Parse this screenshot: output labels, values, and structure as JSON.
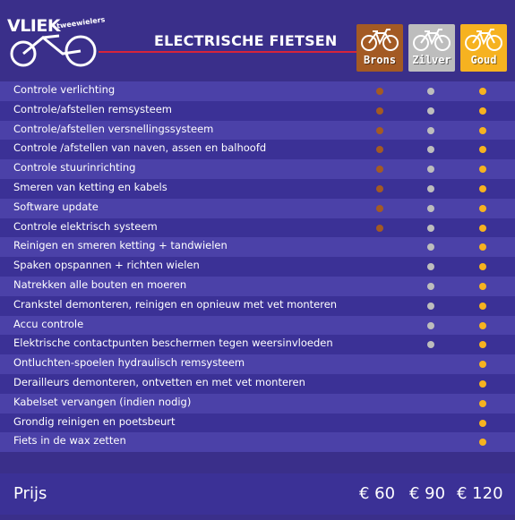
{
  "logo": {
    "word": "VLIEK",
    "sub": "tweewielers"
  },
  "title": "ELECTRISCHE FIETSEN",
  "packages": [
    {
      "name": "Brons",
      "color": "#a35a24"
    },
    {
      "name": "Zilver",
      "color": "#bdbdbd"
    },
    {
      "name": "Goud",
      "color": "#f6b220"
    }
  ],
  "services": [
    {
      "label": "Controle verlichting",
      "brons": true,
      "zilver": true,
      "goud": true
    },
    {
      "label": "Controle/afstellen remsysteem",
      "brons": true,
      "zilver": true,
      "goud": true
    },
    {
      "label": "Controle/afstellen versnellingssysteem",
      "brons": true,
      "zilver": true,
      "goud": true
    },
    {
      "label": "Controle /afstellen van naven, assen en balhoofd",
      "brons": true,
      "zilver": true,
      "goud": true
    },
    {
      "label": "Controle stuurinrichting",
      "brons": true,
      "zilver": true,
      "goud": true
    },
    {
      "label": "Smeren van ketting en kabels",
      "brons": true,
      "zilver": true,
      "goud": true
    },
    {
      "label": "Software update",
      "brons": true,
      "zilver": true,
      "goud": true
    },
    {
      "label": "Controle elektrisch systeem",
      "brons": true,
      "zilver": true,
      "goud": true
    },
    {
      "label": "Reinigen en smeren ketting + tandwielen",
      "brons": false,
      "zilver": true,
      "goud": true
    },
    {
      "label": "Spaken opspannen + richten wielen",
      "brons": false,
      "zilver": true,
      "goud": true
    },
    {
      "label": "Natrekken alle bouten en moeren",
      "brons": false,
      "zilver": true,
      "goud": true
    },
    {
      "label": "Crankstel demonteren, reinigen en opnieuw met vet monteren",
      "brons": false,
      "zilver": true,
      "goud": true
    },
    {
      "label": "Accu controle",
      "brons": false,
      "zilver": true,
      "goud": true
    },
    {
      "label": "Elektrische contactpunten beschermen tegen weersinvloeden",
      "brons": false,
      "zilver": true,
      "goud": true
    },
    {
      "label": "Ontluchten-spoelen hydraulisch remsysteem",
      "brons": false,
      "zilver": false,
      "goud": true
    },
    {
      "label": "Derailleurs demonteren, ontvetten en met vet monteren",
      "brons": false,
      "zilver": false,
      "goud": true
    },
    {
      "label": "Kabelset vervangen (indien nodig)",
      "brons": false,
      "zilver": false,
      "goud": true
    },
    {
      "label": "Grondig reinigen en poetsbeurt",
      "brons": false,
      "zilver": false,
      "goud": true
    },
    {
      "label": "Fiets in de wax zetten",
      "brons": false,
      "zilver": false,
      "goud": true
    }
  ],
  "prices": {
    "label": "Prijs",
    "brons": "€ 60",
    "zilver": "€ 90",
    "goud": "€ 120"
  }
}
